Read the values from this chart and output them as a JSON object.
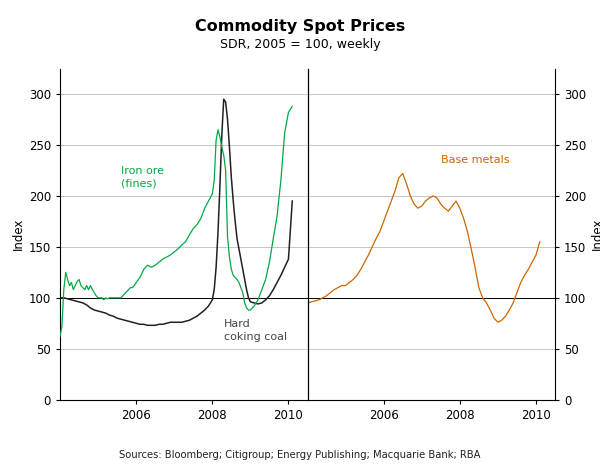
{
  "title": "Commodity Spot Prices",
  "subtitle": "SDR, 2005 = 100, weekly",
  "ylabel_left": "Index",
  "ylabel_right": "Index",
  "source": "Sources: Bloomberg; Citigroup; Energy Publishing; Macquarie Bank; RBA",
  "ylim": [
    0,
    325
  ],
  "yticks": [
    0,
    50,
    100,
    150,
    200,
    250,
    300
  ],
  "iron_ore_color": "#00aa44",
  "coal_color": "#222222",
  "base_metals_color": "#cc6600",
  "background_color": "#ffffff",
  "grid_color": "#bbbbbb",
  "iron_ore_label": "Iron ore\n(fines)",
  "coal_label": "Hard\ncoking coal",
  "base_metals_label": "Base metals",
  "xlim_left": [
    2004.0,
    2010.5
  ],
  "xlim_right": [
    2004.0,
    2010.5
  ],
  "xticks": [
    2006,
    2008,
    2010
  ],
  "xticklabels": [
    "2006",
    "2008",
    "2010"
  ],
  "iron_ore_x": [
    2004.0,
    2004.05,
    2004.1,
    2004.15,
    2004.2,
    2004.25,
    2004.3,
    2004.35,
    2004.4,
    2004.45,
    2004.5,
    2004.55,
    2004.6,
    2004.65,
    2004.7,
    2004.75,
    2004.8,
    2004.85,
    2004.9,
    2004.95,
    2005.0,
    2005.05,
    2005.1,
    2005.15,
    2005.2,
    2005.25,
    2005.3,
    2005.35,
    2005.4,
    2005.45,
    2005.5,
    2005.55,
    2005.6,
    2005.65,
    2005.7,
    2005.75,
    2005.8,
    2005.85,
    2005.9,
    2005.95,
    2006.0,
    2006.1,
    2006.2,
    2006.3,
    2006.4,
    2006.5,
    2006.6,
    2006.7,
    2006.8,
    2006.9,
    2007.0,
    2007.1,
    2007.2,
    2007.3,
    2007.4,
    2007.5,
    2007.6,
    2007.7,
    2007.8,
    2007.9,
    2008.0,
    2008.05,
    2008.1,
    2008.15,
    2008.2,
    2008.25,
    2008.3,
    2008.35,
    2008.4,
    2008.45,
    2008.5,
    2008.55,
    2008.6,
    2008.65,
    2008.7,
    2008.75,
    2008.8,
    2008.85,
    2008.9,
    2008.95,
    2009.0,
    2009.1,
    2009.2,
    2009.3,
    2009.4,
    2009.5,
    2009.6,
    2009.7,
    2009.8,
    2009.9,
    2010.0,
    2010.1
  ],
  "iron_ore_y": [
    62,
    72,
    108,
    125,
    118,
    112,
    115,
    108,
    112,
    116,
    118,
    112,
    110,
    108,
    112,
    108,
    112,
    108,
    105,
    102,
    100,
    100,
    100,
    98,
    100,
    99,
    100,
    100,
    100,
    100,
    100,
    100,
    100,
    102,
    104,
    106,
    108,
    110,
    110,
    112,
    115,
    120,
    128,
    132,
    130,
    132,
    135,
    138,
    140,
    142,
    145,
    148,
    152,
    155,
    162,
    168,
    172,
    178,
    188,
    195,
    202,
    215,
    255,
    265,
    258,
    248,
    240,
    225,
    160,
    140,
    128,
    122,
    120,
    118,
    115,
    110,
    105,
    95,
    90,
    88,
    88,
    92,
    98,
    108,
    118,
    135,
    158,
    180,
    215,
    262,
    282,
    288
  ],
  "coal_x": [
    2004.0,
    2004.1,
    2004.2,
    2004.3,
    2004.4,
    2004.5,
    2004.6,
    2004.7,
    2004.8,
    2004.9,
    2005.0,
    2005.1,
    2005.2,
    2005.3,
    2005.4,
    2005.5,
    2005.6,
    2005.7,
    2005.8,
    2005.9,
    2006.0,
    2006.1,
    2006.2,
    2006.3,
    2006.4,
    2006.5,
    2006.6,
    2006.7,
    2006.8,
    2006.9,
    2007.0,
    2007.1,
    2007.2,
    2007.3,
    2007.4,
    2007.5,
    2007.6,
    2007.7,
    2007.8,
    2007.9,
    2008.0,
    2008.05,
    2008.1,
    2008.15,
    2008.2,
    2008.25,
    2008.3,
    2008.35,
    2008.4,
    2008.45,
    2008.5,
    2008.55,
    2008.6,
    2008.65,
    2008.7,
    2008.75,
    2008.8,
    2008.85,
    2008.9,
    2008.95,
    2009.0,
    2009.1,
    2009.2,
    2009.3,
    2009.4,
    2009.5,
    2009.6,
    2009.7,
    2009.8,
    2009.9,
    2010.0,
    2010.1
  ],
  "coal_y": [
    100,
    100,
    99,
    98,
    97,
    96,
    95,
    93,
    90,
    88,
    87,
    86,
    85,
    83,
    82,
    80,
    79,
    78,
    77,
    76,
    75,
    74,
    74,
    73,
    73,
    73,
    74,
    74,
    75,
    76,
    76,
    76,
    76,
    77,
    78,
    80,
    82,
    85,
    88,
    92,
    98,
    108,
    130,
    165,
    210,
    260,
    295,
    292,
    275,
    248,
    218,
    195,
    175,
    158,
    148,
    138,
    128,
    118,
    108,
    100,
    96,
    95,
    94,
    95,
    98,
    102,
    108,
    115,
    122,
    130,
    138,
    195
  ],
  "base_metals_x": [
    2004.0,
    2004.1,
    2004.2,
    2004.3,
    2004.4,
    2004.5,
    2004.6,
    2004.7,
    2004.8,
    2004.9,
    2005.0,
    2005.1,
    2005.2,
    2005.3,
    2005.4,
    2005.5,
    2005.6,
    2005.7,
    2005.8,
    2005.9,
    2006.0,
    2006.1,
    2006.2,
    2006.3,
    2006.4,
    2006.5,
    2006.6,
    2006.7,
    2006.8,
    2006.9,
    2007.0,
    2007.1,
    2007.2,
    2007.3,
    2007.4,
    2007.5,
    2007.6,
    2007.7,
    2007.8,
    2007.9,
    2008.0,
    2008.1,
    2008.2,
    2008.3,
    2008.4,
    2008.5,
    2008.6,
    2008.7,
    2008.8,
    2008.9,
    2009.0,
    2009.1,
    2009.2,
    2009.3,
    2009.4,
    2009.5,
    2009.6,
    2009.7,
    2009.8,
    2009.9,
    2010.0,
    2010.1
  ],
  "base_metals_y": [
    95,
    96,
    97,
    98,
    100,
    102,
    105,
    108,
    110,
    112,
    112,
    115,
    118,
    122,
    128,
    135,
    142,
    150,
    158,
    165,
    175,
    185,
    195,
    205,
    218,
    222,
    212,
    200,
    192,
    188,
    190,
    195,
    198,
    200,
    198,
    192,
    188,
    185,
    190,
    195,
    188,
    178,
    165,
    148,
    130,
    110,
    100,
    95,
    88,
    80,
    76,
    78,
    82,
    88,
    95,
    105,
    115,
    122,
    128,
    135,
    142,
    155
  ]
}
